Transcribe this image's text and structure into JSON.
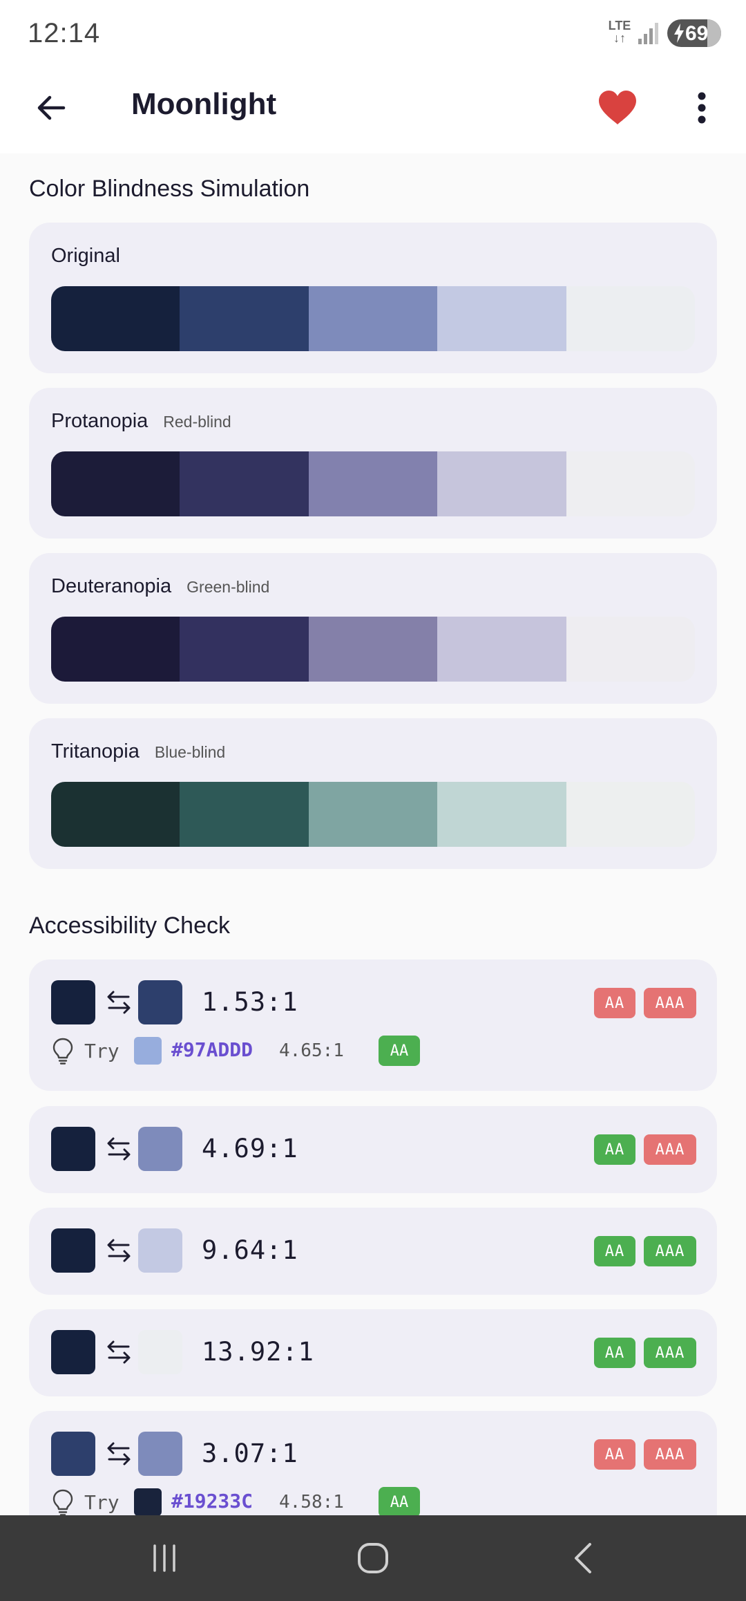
{
  "status_bar": {
    "time": "12:14",
    "network": "LTE",
    "battery": "69"
  },
  "app_bar": {
    "title": "Moonlight"
  },
  "colors": {
    "favorite": "#d9423f",
    "pass": "#4caf50",
    "fail": "#e57373",
    "suggest_text": "#6a4fd0"
  },
  "simulation": {
    "title": "Color Blindness Simulation",
    "cards": [
      {
        "name": "Original",
        "subtitle": "",
        "swatches": [
          "#15213d",
          "#2d3f6c",
          "#7e8bbb",
          "#c3c9e3",
          "#eceef1"
        ]
      },
      {
        "name": "Protanopia",
        "subtitle": "Red-blind",
        "swatches": [
          "#1c1c39",
          "#33335f",
          "#8281ae",
          "#c6c5dc",
          "#eeeef1"
        ]
      },
      {
        "name": "Deuteranopia",
        "subtitle": "Green-blind",
        "swatches": [
          "#1c1a39",
          "#33315f",
          "#8480a9",
          "#c6c4dc",
          "#eeedf1"
        ]
      },
      {
        "name": "Tritanopia",
        "subtitle": "Blue-blind",
        "swatches": [
          "#1b3132",
          "#2e5957",
          "#7fa5a2",
          "#c0d6d4",
          "#edefef"
        ]
      }
    ]
  },
  "accessibility": {
    "title": "Accessibility Check",
    "aa_label": "AA",
    "aaa_label": "AAA",
    "try_label": "Try",
    "rows": [
      {
        "fg": "#15213d",
        "bg": "#2d3f6c",
        "ratio": "1.53:1",
        "aa": false,
        "aaa": false,
        "suggestion": {
          "color": "#97ADDD",
          "hex": "#97ADDD",
          "ratio": "4.65:1",
          "badge": "AA"
        }
      },
      {
        "fg": "#15213d",
        "bg": "#7e8bbb",
        "ratio": "4.69:1",
        "aa": true,
        "aaa": false
      },
      {
        "fg": "#15213d",
        "bg": "#c3c9e3",
        "ratio": "9.64:1",
        "aa": true,
        "aaa": true
      },
      {
        "fg": "#15213d",
        "bg": "#eceef1",
        "ratio": "13.92:1",
        "aa": true,
        "aaa": true
      },
      {
        "fg": "#2d3f6c",
        "bg": "#7e8bbb",
        "ratio": "3.07:1",
        "aa": false,
        "aaa": false,
        "suggestion": {
          "color": "#19233C",
          "hex": "#19233C",
          "ratio": "4.58:1",
          "badge": "AA"
        }
      }
    ]
  }
}
